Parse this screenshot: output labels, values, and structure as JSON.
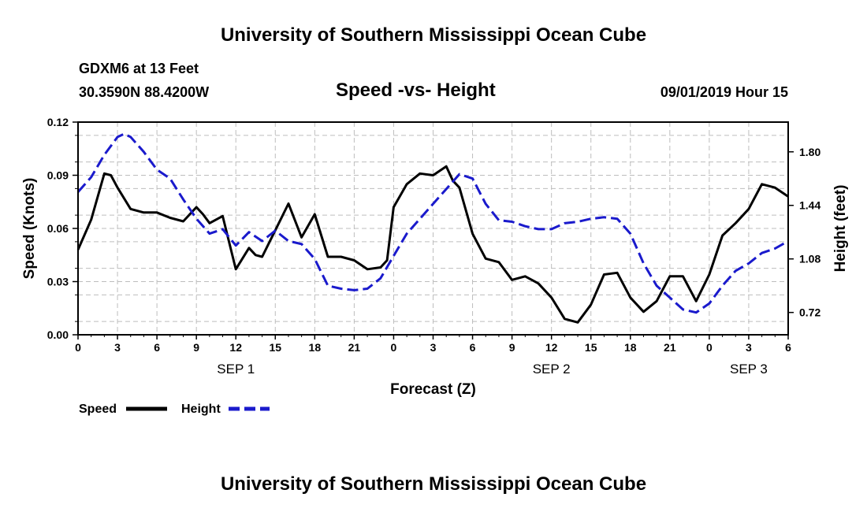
{
  "header": {
    "title_top": "University of Southern Mississippi Ocean Cube",
    "station_line": "GDXM6 at 13 Feet",
    "coords_line": "30.3590N 88.4200W",
    "datetime_line": "09/01/2019 Hour 15",
    "title_bottom": "University of Southern Mississippi Ocean Cube"
  },
  "colors": {
    "speed": "#000000",
    "height": "#1a1acc",
    "grid": "#bdbdbd"
  },
  "chart_data": {
    "type": "line",
    "title": "Speed -vs- Height",
    "xlabel": "Forecast (Z)",
    "ylabel_left": "Speed (Knots)",
    "ylabel_right": "Height (feet)",
    "x_range": [
      0,
      54
    ],
    "ylim_left": [
      0,
      0.12
    ],
    "ylim_right": [
      0.57,
      2.0
    ],
    "x_ticks": [
      {
        "x": 0,
        "label": "0"
      },
      {
        "x": 3,
        "label": "3"
      },
      {
        "x": 6,
        "label": "6"
      },
      {
        "x": 9,
        "label": "9"
      },
      {
        "x": 12,
        "label": "12"
      },
      {
        "x": 15,
        "label": "15"
      },
      {
        "x": 18,
        "label": "18"
      },
      {
        "x": 21,
        "label": "21"
      },
      {
        "x": 24,
        "label": "0"
      },
      {
        "x": 27,
        "label": "3"
      },
      {
        "x": 30,
        "label": "6"
      },
      {
        "x": 33,
        "label": "9"
      },
      {
        "x": 36,
        "label": "12"
      },
      {
        "x": 39,
        "label": "15"
      },
      {
        "x": 42,
        "label": "18"
      },
      {
        "x": 45,
        "label": "21"
      },
      {
        "x": 48,
        "label": "0"
      },
      {
        "x": 51,
        "label": "3"
      },
      {
        "x": 54,
        "label": "6"
      }
    ],
    "date_labels": [
      {
        "x": 12,
        "label": "SEP 1"
      },
      {
        "x": 36,
        "label": "SEP 2"
      },
      {
        "x": 51,
        "label": "SEP 3"
      }
    ],
    "y_ticks_left": [
      "0.00",
      "0.03",
      "0.06",
      "0.09",
      "0.12"
    ],
    "y_ticks_right": [
      "0.72",
      "1.08",
      "1.44",
      "1.80"
    ],
    "legend": [
      {
        "name": "Speed",
        "style": "solid"
      },
      {
        "name": "Height",
        "style": "dashed"
      }
    ],
    "series": [
      {
        "name": "Speed",
        "axis": "left",
        "x": [
          0,
          1,
          2,
          2.5,
          3,
          4,
          5,
          6,
          7,
          8,
          9,
          9.5,
          10,
          11,
          12,
          13,
          13.5,
          14,
          15,
          16,
          17,
          18,
          19,
          20,
          21,
          22,
          23,
          23.5,
          24,
          25,
          26,
          27,
          28,
          28.5,
          29,
          30,
          31,
          32,
          33,
          34,
          35,
          36,
          37,
          38,
          39,
          40,
          41,
          42,
          43,
          44,
          45,
          46,
          47,
          48,
          49,
          50,
          51,
          52,
          53,
          54
        ],
        "values": [
          0.048,
          0.065,
          0.091,
          0.09,
          0.083,
          0.071,
          0.069,
          0.069,
          0.066,
          0.064,
          0.072,
          0.068,
          0.063,
          0.067,
          0.037,
          0.049,
          0.045,
          0.044,
          0.059,
          0.074,
          0.055,
          0.068,
          0.044,
          0.044,
          0.042,
          0.037,
          0.038,
          0.042,
          0.072,
          0.085,
          0.091,
          0.09,
          0.095,
          0.087,
          0.083,
          0.057,
          0.043,
          0.041,
          0.031,
          0.033,
          0.029,
          0.021,
          0.009,
          0.007,
          0.017,
          0.034,
          0.035,
          0.021,
          0.013,
          0.019,
          0.033,
          0.033,
          0.019,
          0.034,
          0.056,
          0.063,
          0.071,
          0.085,
          0.083,
          0.078
        ]
      },
      {
        "name": "Height",
        "axis": "right",
        "x": [
          0,
          1,
          2,
          3,
          3.5,
          4,
          5,
          6,
          7,
          8,
          9,
          10,
          11,
          12,
          13,
          14,
          15,
          16,
          17,
          18,
          19,
          20,
          21,
          22,
          23,
          24,
          25,
          26,
          27,
          28,
          29,
          30,
          31,
          32,
          33,
          34,
          35,
          36,
          37,
          38,
          39,
          40,
          41,
          42,
          43,
          44,
          45,
          46,
          47,
          48,
          49,
          50,
          51,
          52,
          53,
          54
        ],
        "values": [
          1.53,
          1.63,
          1.78,
          1.9,
          1.92,
          1.9,
          1.8,
          1.68,
          1.62,
          1.48,
          1.35,
          1.25,
          1.28,
          1.17,
          1.26,
          1.2,
          1.27,
          1.2,
          1.18,
          1.08,
          0.9,
          0.88,
          0.87,
          0.88,
          0.95,
          1.1,
          1.25,
          1.35,
          1.45,
          1.55,
          1.65,
          1.62,
          1.45,
          1.34,
          1.33,
          1.3,
          1.28,
          1.28,
          1.32,
          1.33,
          1.35,
          1.36,
          1.35,
          1.25,
          1.05,
          0.9,
          0.82,
          0.74,
          0.72,
          0.78,
          0.9,
          1.0,
          1.05,
          1.12,
          1.15,
          1.2
        ]
      }
    ]
  }
}
